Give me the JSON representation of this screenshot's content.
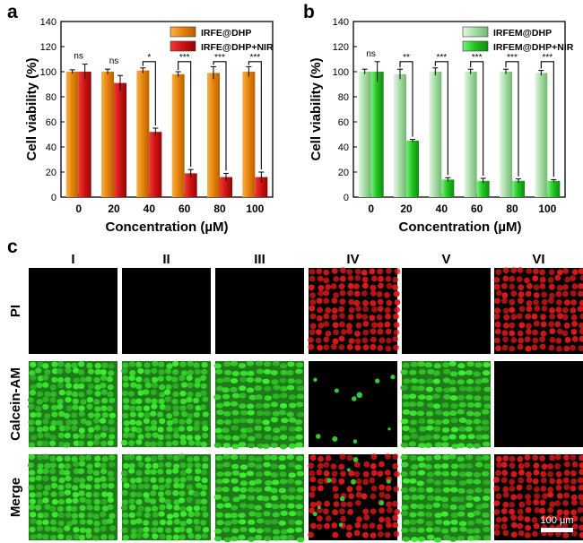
{
  "panels": {
    "a": "a",
    "b": "b",
    "c": "c"
  },
  "chart_data": [
    {
      "type": "bar",
      "panel": "a",
      "xlabel": "Concentration (µM)",
      "ylabel": "Cell viability (%)",
      "ylim": [
        0,
        140
      ],
      "yticks": [
        0,
        20,
        40,
        60,
        80,
        100,
        120,
        140
      ],
      "categories": [
        "0",
        "20",
        "40",
        "60",
        "80",
        "100"
      ],
      "grid": false,
      "legend_position": "top-right",
      "series": [
        {
          "name": "IRFE@DHP",
          "color": "#e8860f",
          "values": [
            100,
            100,
            101,
            98,
            99,
            100
          ],
          "errors": [
            1.5,
            2,
            2,
            2,
            5,
            4
          ]
        },
        {
          "name": "IRFE@DHP+NIR",
          "color": "#d21414",
          "values": [
            100,
            91,
            52,
            19,
            16,
            16
          ],
          "errors": [
            6,
            6,
            3,
            3,
            3,
            4
          ]
        }
      ],
      "significance": [
        "ns",
        "ns",
        "*",
        "***",
        "***",
        "***"
      ]
    },
    {
      "type": "bar",
      "panel": "b",
      "xlabel": "Concentration (µM)",
      "ylabel": "Cell viability (%)",
      "ylim": [
        0,
        140
      ],
      "yticks": [
        0,
        20,
        40,
        60,
        80,
        100,
        120,
        140
      ],
      "categories": [
        "0",
        "20",
        "40",
        "60",
        "80",
        "100"
      ],
      "grid": false,
      "legend_position": "top-right",
      "series": [
        {
          "name": "IRFEM@DHP",
          "color": "#a9dea9",
          "values": [
            100,
            98,
            100,
            100,
            100,
            99
          ],
          "errors": [
            2,
            4,
            3,
            2,
            2,
            2
          ]
        },
        {
          "name": "IRFEM@DHP+NIR",
          "color": "#22c722",
          "values": [
            100,
            45,
            14,
            13,
            13,
            13
          ],
          "errors": [
            8,
            1,
            1.5,
            2,
            1.5,
            1
          ]
        }
      ],
      "significance": [
        "ns",
        "**",
        "***",
        "***",
        "***",
        "***"
      ]
    }
  ],
  "micrographs": {
    "columns": [
      "I",
      "II",
      "III",
      "IV",
      "V",
      "VI"
    ],
    "rows": [
      "PI",
      "Calcein-AM",
      "Merge"
    ],
    "scale_bar": "100 µm",
    "red_color": "#e01818",
    "green_color": "#36c830"
  }
}
